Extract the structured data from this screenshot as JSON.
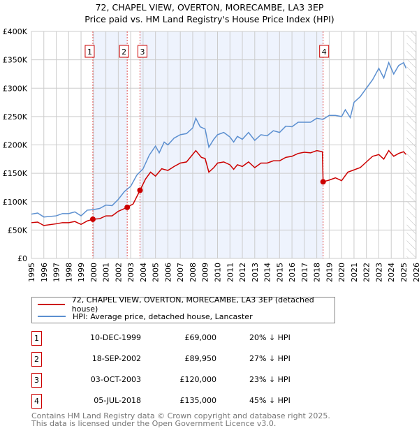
{
  "chart_data": {
    "type": "line",
    "title": "72, CHAPEL VIEW, OVERTON, MORECAMBE, LA3 3EP",
    "subtitle": "Price paid vs. HM Land Registry's House Price Index (HPI)",
    "xlim": [
      1995,
      2026
    ],
    "ylim": [
      0,
      400000
    ],
    "yticks": [
      {
        "v": 0,
        "label": "£0"
      },
      {
        "v": 50000,
        "label": "£50K"
      },
      {
        "v": 100000,
        "label": "£100K"
      },
      {
        "v": 150000,
        "label": "£150K"
      },
      {
        "v": 200000,
        "label": "£200K"
      },
      {
        "v": 250000,
        "label": "£250K"
      },
      {
        "v": 300000,
        "label": "£300K"
      },
      {
        "v": 350000,
        "label": "£350K"
      },
      {
        "v": 400000,
        "label": "£400K"
      }
    ],
    "xticks": [
      "1995",
      "1996",
      "1997",
      "1998",
      "1999",
      "2000",
      "2001",
      "2002",
      "2003",
      "2004",
      "2005",
      "2006",
      "2007",
      "2008",
      "2009",
      "2010",
      "2011",
      "2012",
      "2013",
      "2014",
      "2015",
      "2016",
      "2017",
      "2018",
      "2019",
      "2020",
      "2021",
      "2022",
      "2023",
      "2024",
      "2025",
      "2026"
    ],
    "grid": true,
    "series": [
      {
        "name": "72, CHAPEL VIEW, OVERTON, MORECAMBE, LA3 3EP (detached house)",
        "color": "#cc0000",
        "points": [
          [
            1995,
            63
          ],
          [
            1995.5,
            64
          ],
          [
            1996,
            58
          ],
          [
            1997,
            61
          ],
          [
            1997.5,
            63
          ],
          [
            1998,
            63
          ],
          [
            1998.5,
            65
          ],
          [
            1999,
            60
          ],
          [
            1999.5,
            66
          ],
          [
            1999.95,
            69
          ],
          [
            2000.5,
            70
          ],
          [
            2001,
            75
          ],
          [
            2001.5,
            75
          ],
          [
            2002,
            83
          ],
          [
            2002.72,
            90
          ],
          [
            2003.2,
            96
          ],
          [
            2003.75,
            120
          ],
          [
            2004.2,
            140
          ],
          [
            2004.6,
            152
          ],
          [
            2005,
            145
          ],
          [
            2005.5,
            158
          ],
          [
            2006,
            155
          ],
          [
            2006.5,
            162
          ],
          [
            2007,
            168
          ],
          [
            2007.5,
            170
          ],
          [
            2008.25,
            190
          ],
          [
            2008.7,
            178
          ],
          [
            2009,
            176
          ],
          [
            2009.3,
            152
          ],
          [
            2009.7,
            160
          ],
          [
            2010,
            168
          ],
          [
            2010.5,
            170
          ],
          [
            2011,
            165
          ],
          [
            2011.3,
            157
          ],
          [
            2011.6,
            165
          ],
          [
            2012,
            162
          ],
          [
            2012.5,
            170
          ],
          [
            2013,
            160
          ],
          [
            2013.5,
            168
          ],
          [
            2014,
            168
          ],
          [
            2014.5,
            172
          ],
          [
            2015,
            172
          ],
          [
            2015.5,
            178
          ],
          [
            2016,
            180
          ],
          [
            2016.5,
            185
          ],
          [
            2017,
            187
          ],
          [
            2017.5,
            186
          ],
          [
            2018,
            190
          ],
          [
            2018.45,
            188
          ],
          [
            2018.51,
            135
          ],
          [
            2019,
            138
          ],
          [
            2019.5,
            142
          ],
          [
            2020,
            137
          ],
          [
            2020.5,
            152
          ],
          [
            2021,
            156
          ],
          [
            2021.5,
            160
          ],
          [
            2022,
            170
          ],
          [
            2022.5,
            180
          ],
          [
            2023,
            183
          ],
          [
            2023.4,
            175
          ],
          [
            2023.8,
            190
          ],
          [
            2024.2,
            180
          ],
          [
            2024.6,
            185
          ],
          [
            2025,
            188
          ],
          [
            2025.2,
            183
          ]
        ]
      },
      {
        "name": "HPI: Average price, detached house, Lancaster",
        "color": "#5b8fd0",
        "points": [
          [
            1995,
            78
          ],
          [
            1995.5,
            80
          ],
          [
            1996,
            73
          ],
          [
            1997,
            75
          ],
          [
            1997.5,
            79
          ],
          [
            1998,
            79
          ],
          [
            1998.5,
            82
          ],
          [
            1999,
            75
          ],
          [
            1999.5,
            85
          ],
          [
            2000,
            86
          ],
          [
            2000.5,
            88
          ],
          [
            2001,
            94
          ],
          [
            2001.5,
            93
          ],
          [
            2002,
            104
          ],
          [
            2002.5,
            118
          ],
          [
            2003,
            127
          ],
          [
            2003.5,
            147
          ],
          [
            2004,
            158
          ],
          [
            2004.5,
            182
          ],
          [
            2005,
            198
          ],
          [
            2005.3,
            186
          ],
          [
            2005.7,
            205
          ],
          [
            2006,
            200
          ],
          [
            2006.5,
            212
          ],
          [
            2007,
            218
          ],
          [
            2007.5,
            220
          ],
          [
            2008,
            230
          ],
          [
            2008.25,
            247
          ],
          [
            2008.6,
            232
          ],
          [
            2009,
            228
          ],
          [
            2009.3,
            196
          ],
          [
            2009.7,
            210
          ],
          [
            2010,
            218
          ],
          [
            2010.5,
            222
          ],
          [
            2011,
            214
          ],
          [
            2011.3,
            205
          ],
          [
            2011.6,
            215
          ],
          [
            2012,
            210
          ],
          [
            2012.5,
            222
          ],
          [
            2013,
            208
          ],
          [
            2013.5,
            218
          ],
          [
            2014,
            216
          ],
          [
            2014.5,
            225
          ],
          [
            2015,
            222
          ],
          [
            2015.5,
            233
          ],
          [
            2016,
            232
          ],
          [
            2016.5,
            240
          ],
          [
            2017,
            240
          ],
          [
            2017.5,
            240
          ],
          [
            2018,
            247
          ],
          [
            2018.5,
            245
          ],
          [
            2019,
            252
          ],
          [
            2019.5,
            252
          ],
          [
            2020,
            250
          ],
          [
            2020.3,
            262
          ],
          [
            2020.7,
            248
          ],
          [
            2021,
            275
          ],
          [
            2021.5,
            285
          ],
          [
            2022,
            300
          ],
          [
            2022.5,
            315
          ],
          [
            2023,
            335
          ],
          [
            2023.4,
            318
          ],
          [
            2023.8,
            345
          ],
          [
            2024.2,
            325
          ],
          [
            2024.6,
            340
          ],
          [
            2025,
            345
          ],
          [
            2025.2,
            335
          ]
        ]
      }
    ],
    "sales": [
      {
        "n": "1",
        "x": 1999.95,
        "value": 69000
      },
      {
        "n": "2",
        "x": 2002.72,
        "value": 89950
      },
      {
        "n": "3",
        "x": 2003.75,
        "value": 120000
      },
      {
        "n": "4",
        "x": 2018.51,
        "value": 135000
      }
    ],
    "shaded": [
      [
        1999.95,
        2002.72
      ],
      [
        2003.75,
        2018.51
      ]
    ],
    "forecast_from": 2025.25,
    "legend_placement": "bottom"
  },
  "table": [
    {
      "n": "1",
      "date": "10-DEC-1999",
      "price": "£69,000",
      "diff": "20% ↓ HPI"
    },
    {
      "n": "2",
      "date": "18-SEP-2002",
      "price": "£89,950",
      "diff": "27% ↓ HPI"
    },
    {
      "n": "3",
      "date": "03-OCT-2003",
      "price": "£120,000",
      "diff": "23% ↓ HPI"
    },
    {
      "n": "4",
      "date": "05-JUL-2018",
      "price": "£135,000",
      "diff": "45% ↓ HPI"
    }
  ],
  "footer": [
    "Contains HM Land Registry data © Crown copyright and database right 2025.",
    "This data is licensed under the Open Government Licence v3.0."
  ]
}
